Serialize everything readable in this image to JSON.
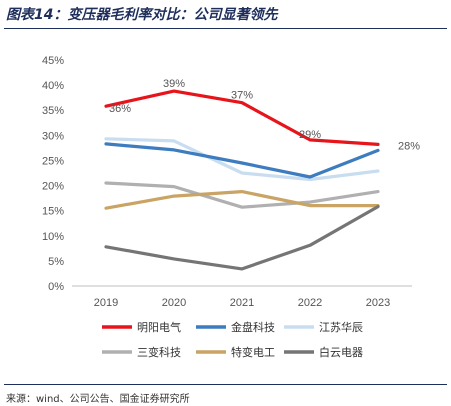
{
  "figure": {
    "title": "图表14：变压器毛利率对比：公司显著领先",
    "source": "来源：wind、公司公告、国金证券研究所"
  },
  "chart_data": {
    "type": "line",
    "title": "",
    "xlabel": "",
    "ylabel": "",
    "categories": [
      "2019",
      "2020",
      "2021",
      "2022",
      "2023"
    ],
    "ylim": [
      0,
      45
    ],
    "yticks": [
      "0%",
      "5%",
      "10%",
      "15%",
      "20%",
      "25%",
      "30%",
      "35%",
      "40%",
      "45%"
    ],
    "grid": false,
    "legend_position": "bottom",
    "series": [
      {
        "name": "明阳电气",
        "color": "#e8141b",
        "values": [
          35.8,
          38.8,
          36.5,
          29.1,
          28.2
        ],
        "labels": [
          "36%",
          "39%",
          "37%",
          "29%",
          "28%"
        ]
      },
      {
        "name": "金盘科技",
        "color": "#3e7cc0",
        "values": [
          28.3,
          27.1,
          24.5,
          21.7,
          27.0
        ]
      },
      {
        "name": "江苏华辰",
        "color": "#c9ddf1",
        "values": [
          29.3,
          28.9,
          22.5,
          21.2,
          22.9
        ]
      },
      {
        "name": "三变科技",
        "color": "#b0b0b0",
        "values": [
          20.5,
          19.8,
          15.7,
          16.7,
          18.8
        ]
      },
      {
        "name": "特变电工",
        "color": "#c9a464",
        "values": [
          15.5,
          17.9,
          18.8,
          16.0,
          16.0
        ]
      },
      {
        "name": "白云电器",
        "color": "#757575",
        "values": [
          7.8,
          5.4,
          3.4,
          8.1,
          15.8
        ]
      }
    ]
  }
}
